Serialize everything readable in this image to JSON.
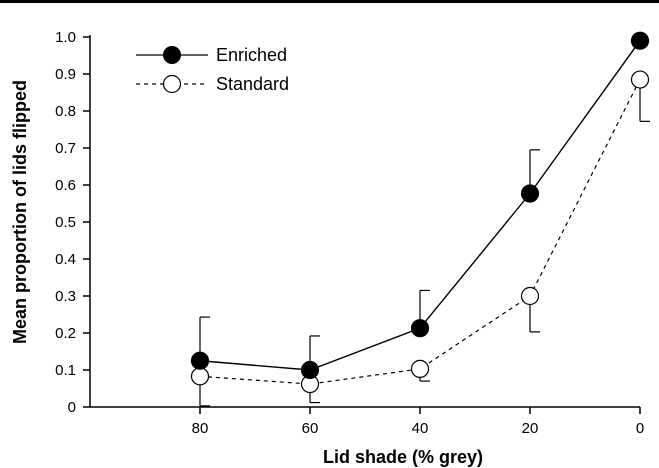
{
  "chart_data": {
    "type": "line",
    "title": "",
    "xlabel": "Lid shade (% grey)",
    "ylabel": "Mean proportion of lids flipped",
    "x": [
      80,
      60,
      40,
      20,
      0
    ],
    "x_ticks": [
      "80",
      "60",
      "40",
      "20",
      "0"
    ],
    "y_ticks": [
      "0",
      "0.1",
      "0.2",
      "0.3",
      "0.4",
      "0.5",
      "0.6",
      "0.7",
      "0.8",
      "0.9",
      "1.0"
    ],
    "ylim": [
      0,
      1.0
    ],
    "xlim": [
      100,
      0
    ],
    "x_reversed": true,
    "grid": false,
    "legend_position": "top-left",
    "series": [
      {
        "name": "Enriched",
        "marker": "filled-circle",
        "line_style": "solid",
        "values": [
          0.125,
          0.1,
          0.213,
          0.577,
          0.99
        ],
        "error_upper": [
          0.243,
          0.192,
          0.315,
          0.695,
          0.99
        ],
        "error_lower": [
          0.125,
          0.1,
          0.213,
          0.577,
          0.99
        ]
      },
      {
        "name": "Standard",
        "marker": "open-circle",
        "line_style": "dashed",
        "values": [
          0.083,
          0.062,
          0.103,
          0.3,
          0.885
        ],
        "error_upper": [
          0.083,
          0.062,
          0.103,
          0.3,
          0.885
        ],
        "error_lower": [
          0.003,
          0.012,
          0.07,
          0.203,
          0.772
        ]
      }
    ]
  },
  "colors": {
    "enriched": "#000000",
    "standard": "#ffffff",
    "axis": "#000000"
  }
}
